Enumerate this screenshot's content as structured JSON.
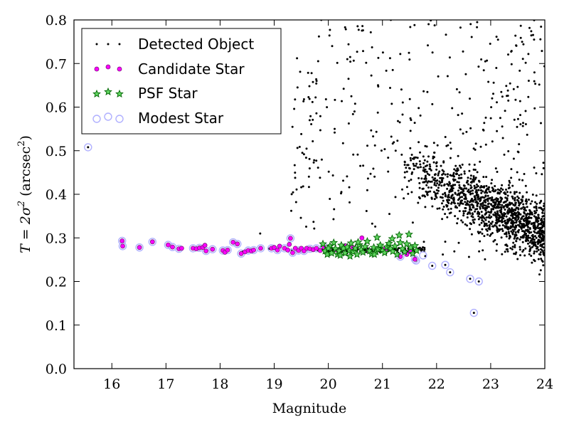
{
  "chart_data": {
    "type": "scatter",
    "xlabel": "Magnitude",
    "ylabel_parts": {
      "main": "T = 2σ",
      "exp": "2",
      "open": " (arcsec",
      "exp2": "2",
      "close": ")"
    },
    "xlim": [
      15.3,
      24.0
    ],
    "ylim": [
      0.0,
      0.8
    ],
    "x_ticks": [
      "16",
      "17",
      "18",
      "19",
      "20",
      "21",
      "22",
      "23",
      "24"
    ],
    "y_ticks": [
      "0.0",
      "0.1",
      "0.2",
      "0.3",
      "0.4",
      "0.5",
      "0.6",
      "0.7",
      "0.8"
    ],
    "grid": false,
    "legend_position": "top-left",
    "colors": {
      "detected": "#000000",
      "candidate": "#ff00ff",
      "psf": "#00a000",
      "modest": "#b0b0ff"
    },
    "series": [
      {
        "name": "Detected Object",
        "marker": "dot"
      },
      {
        "name": "Candidate Star",
        "marker": "circle-magenta"
      },
      {
        "name": "PSF Star",
        "marker": "star-green"
      },
      {
        "name": "Modest Star",
        "marker": "ring-lavender"
      }
    ],
    "detected_sample": {
      "description_free_note": "",
      "fixed_points": [
        [
          15.56,
          0.508
        ],
        [
          16.2,
          0.28
        ],
        [
          16.18,
          0.292
        ],
        [
          16.5,
          0.278
        ],
        [
          16.74,
          0.291
        ],
        [
          17.05,
          0.284
        ],
        [
          17.22,
          0.275
        ],
        [
          17.5,
          0.274
        ],
        [
          18.32,
          0.289
        ],
        [
          18.42,
          0.269
        ],
        [
          18.9,
          0.275
        ],
        [
          19.32,
          0.3
        ],
        [
          19.32,
          0.273
        ],
        [
          22.69,
          0.128
        ],
        [
          22.78,
          0.2
        ],
        [
          22.62,
          0.206
        ],
        [
          22.25,
          0.221
        ],
        [
          22.16,
          0.238
        ],
        [
          21.92,
          0.236
        ],
        [
          21.62,
          0.248
        ],
        [
          18.74,
          0.31
        ],
        [
          19.52,
          0.495
        ],
        [
          19.55,
          0.618
        ],
        [
          19.65,
          0.648
        ],
        [
          19.43,
          0.645
        ],
        [
          19.87,
          0.8
        ],
        [
          20.31,
          0.783
        ],
        [
          20.63,
          0.786
        ],
        [
          20.07,
          0.74
        ],
        [
          20.35,
          0.71
        ]
      ]
    },
    "candidate_points": [
      [
        16.19,
        0.293
      ],
      [
        16.2,
        0.281
      ],
      [
        16.51,
        0.278
      ],
      [
        16.75,
        0.291
      ],
      [
        17.04,
        0.284
      ],
      [
        17.12,
        0.279
      ],
      [
        17.24,
        0.275
      ],
      [
        17.29,
        0.276
      ],
      [
        17.5,
        0.276
      ],
      [
        17.56,
        0.275
      ],
      [
        17.62,
        0.277
      ],
      [
        17.68,
        0.278
      ],
      [
        17.72,
        0.283
      ],
      [
        17.74,
        0.27
      ],
      [
        17.86,
        0.274
      ],
      [
        18.05,
        0.271
      ],
      [
        18.09,
        0.267
      ],
      [
        18.14,
        0.272
      ],
      [
        18.24,
        0.29
      ],
      [
        18.32,
        0.286
      ],
      [
        18.39,
        0.264
      ],
      [
        18.46,
        0.268
      ],
      [
        18.52,
        0.271
      ],
      [
        18.58,
        0.27
      ],
      [
        18.62,
        0.272
      ],
      [
        18.75,
        0.276
      ],
      [
        18.95,
        0.276
      ],
      [
        19.0,
        0.278
      ],
      [
        19.06,
        0.272
      ],
      [
        19.1,
        0.281
      ],
      [
        19.19,
        0.276
      ],
      [
        19.25,
        0.272
      ],
      [
        19.28,
        0.285
      ],
      [
        19.3,
        0.299
      ],
      [
        19.34,
        0.266
      ],
      [
        19.39,
        0.276
      ],
      [
        19.45,
        0.271
      ],
      [
        19.5,
        0.276
      ],
      [
        19.55,
        0.27
      ],
      [
        19.6,
        0.276
      ],
      [
        19.66,
        0.275
      ],
      [
        19.72,
        0.273
      ],
      [
        19.78,
        0.276
      ],
      [
        19.85,
        0.271
      ],
      [
        19.92,
        0.279
      ],
      [
        20.02,
        0.278
      ],
      [
        20.15,
        0.273
      ],
      [
        20.31,
        0.282
      ],
      [
        20.45,
        0.278
      ],
      [
        20.62,
        0.3
      ],
      [
        20.75,
        0.27
      ],
      [
        21.05,
        0.275
      ],
      [
        21.33,
        0.257
      ],
      [
        21.45,
        0.262
      ],
      [
        21.52,
        0.268
      ],
      [
        21.6,
        0.251
      ]
    ],
    "psf_points": [
      [
        19.9,
        0.286
      ],
      [
        19.94,
        0.27
      ],
      [
        19.98,
        0.262
      ],
      [
        20.03,
        0.281
      ],
      [
        20.06,
        0.265
      ],
      [
        20.1,
        0.289
      ],
      [
        20.13,
        0.275
      ],
      [
        20.17,
        0.262
      ],
      [
        20.2,
        0.27
      ],
      [
        20.24,
        0.283
      ],
      [
        20.28,
        0.276
      ],
      [
        20.31,
        0.265
      ],
      [
        20.35,
        0.279
      ],
      [
        20.39,
        0.271
      ],
      [
        20.42,
        0.288
      ],
      [
        20.46,
        0.268
      ],
      [
        20.5,
        0.276
      ],
      [
        20.53,
        0.262
      ],
      [
        20.57,
        0.284
      ],
      [
        20.61,
        0.273
      ],
      [
        20.64,
        0.267
      ],
      [
        20.68,
        0.28
      ],
      [
        20.72,
        0.292
      ],
      [
        20.76,
        0.27
      ],
      [
        20.8,
        0.263
      ],
      [
        20.84,
        0.278
      ],
      [
        20.88,
        0.268
      ],
      [
        20.92,
        0.274
      ],
      [
        20.96,
        0.283
      ],
      [
        21.0,
        0.271
      ],
      [
        21.04,
        0.266
      ],
      [
        21.08,
        0.279
      ],
      [
        21.12,
        0.287
      ],
      [
        21.15,
        0.275
      ],
      [
        21.19,
        0.269
      ],
      [
        21.23,
        0.281
      ],
      [
        21.27,
        0.262
      ],
      [
        21.31,
        0.306
      ],
      [
        21.33,
        0.289
      ],
      [
        21.37,
        0.275
      ],
      [
        21.41,
        0.268
      ],
      [
        21.45,
        0.286
      ],
      [
        21.49,
        0.308
      ],
      [
        21.52,
        0.278
      ],
      [
        21.56,
        0.264
      ],
      [
        21.6,
        0.282
      ],
      [
        21.63,
        0.271
      ],
      [
        20.0,
        0.276
      ],
      [
        20.22,
        0.26
      ],
      [
        20.55,
        0.29
      ],
      [
        20.9,
        0.301
      ],
      [
        21.18,
        0.298
      ],
      [
        20.4,
        0.258
      ],
      [
        20.85,
        0.262
      ]
    ],
    "modest_points": [
      [
        15.56,
        0.508
      ],
      [
        16.19,
        0.293
      ],
      [
        16.2,
        0.281
      ],
      [
        16.51,
        0.278
      ],
      [
        16.75,
        0.291
      ],
      [
        17.04,
        0.284
      ],
      [
        17.12,
        0.279
      ],
      [
        17.24,
        0.275
      ],
      [
        17.5,
        0.276
      ],
      [
        17.62,
        0.277
      ],
      [
        17.74,
        0.27
      ],
      [
        17.86,
        0.274
      ],
      [
        18.05,
        0.271
      ],
      [
        18.14,
        0.272
      ],
      [
        18.24,
        0.29
      ],
      [
        18.32,
        0.286
      ],
      [
        18.39,
        0.264
      ],
      [
        18.52,
        0.271
      ],
      [
        18.62,
        0.272
      ],
      [
        18.75,
        0.276
      ],
      [
        18.95,
        0.276
      ],
      [
        19.06,
        0.272
      ],
      [
        19.19,
        0.276
      ],
      [
        19.3,
        0.299
      ],
      [
        19.34,
        0.266
      ],
      [
        19.45,
        0.271
      ],
      [
        19.55,
        0.27
      ],
      [
        19.66,
        0.275
      ],
      [
        19.78,
        0.276
      ],
      [
        19.92,
        0.279
      ],
      [
        21.33,
        0.257
      ],
      [
        21.6,
        0.251
      ],
      [
        21.62,
        0.248
      ],
      [
        21.75,
        0.26
      ],
      [
        21.92,
        0.236
      ],
      [
        22.16,
        0.238
      ],
      [
        22.25,
        0.221
      ],
      [
        22.62,
        0.206
      ],
      [
        22.69,
        0.128
      ],
      [
        22.78,
        0.2
      ]
    ]
  }
}
